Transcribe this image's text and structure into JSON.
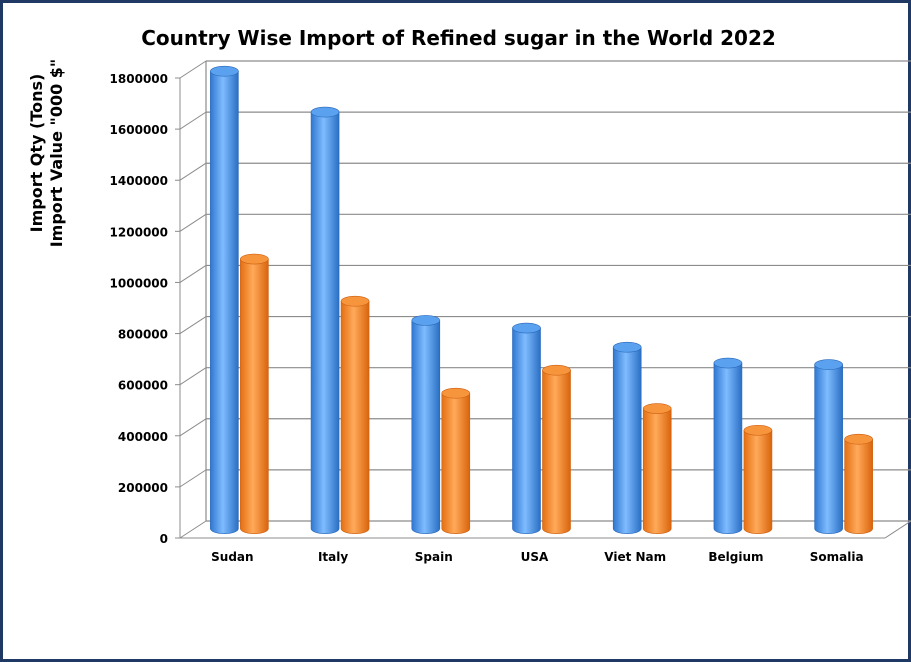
{
  "chart_data": {
    "type": "bar",
    "title": "Country Wise Import of Refined sugar in the World 2022",
    "ylabel_lines": [
      "Import Qty (Tons)",
      "Import Value \"000 $\""
    ],
    "xlabel": "",
    "categories": [
      "Sudan",
      "Italy",
      "Spain",
      "USA",
      "Viet Nam",
      "Belgium",
      "Somalia"
    ],
    "series": [
      {
        "values": [
          1790000,
          1630000,
          815000,
          785000,
          710000,
          648000,
          642000
        ],
        "color": "#3d8ee8"
      },
      {
        "values": [
          1055000,
          890000,
          530000,
          620000,
          470000,
          385000,
          350000
        ],
        "color": "#f28a2e"
      }
    ],
    "ylim": [
      0,
      1800000
    ],
    "yticks": [
      "0",
      "200000",
      "400000",
      "600000",
      "800000",
      "1000000",
      "1200000",
      "1400000",
      "1600000",
      "1800000"
    ],
    "grid": true,
    "legend": "none",
    "frame_color": "#1f3864"
  }
}
